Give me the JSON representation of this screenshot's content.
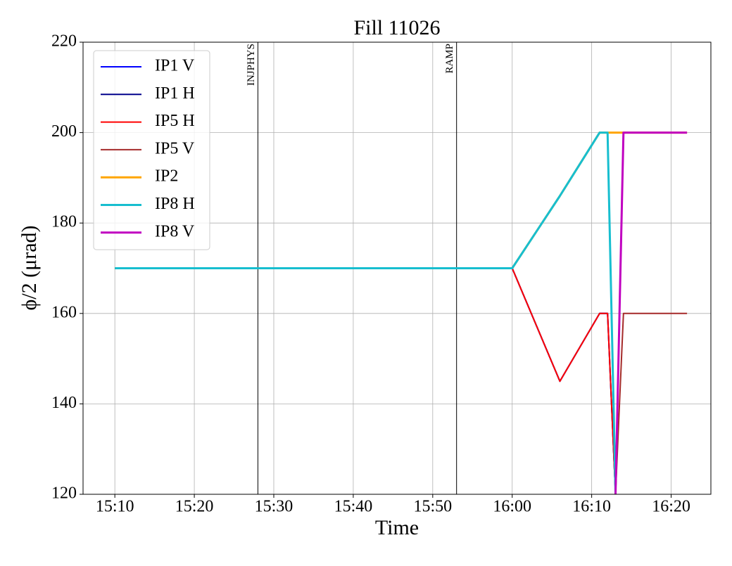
{
  "chart_data": {
    "type": "line",
    "title": "Fill 11026",
    "x_label": "Time",
    "y_label": "ϕ/2 (μrad)",
    "x": [
      "15:10",
      "16:00",
      "16:06",
      "16:11",
      "16:12",
      "16:13",
      "16:14",
      "16:22"
    ],
    "series": [
      {
        "name": "IP1 V",
        "color": "#0000ff",
        "linewidth": 2,
        "values": [
          170,
          170,
          145,
          160,
          160,
          120,
          null,
          null
        ]
      },
      {
        "name": "IP1 H",
        "color": "#00008b",
        "linewidth": 2,
        "values": [
          170,
          170,
          145,
          160,
          160,
          120,
          null,
          null
        ]
      },
      {
        "name": "IP5 H",
        "color": "#ff0000",
        "linewidth": 2,
        "values": [
          170,
          170,
          145,
          160,
          160,
          120,
          null,
          null
        ]
      },
      {
        "name": "IP5 V",
        "color": "#a52a2a",
        "linewidth": 2,
        "values": [
          null,
          null,
          null,
          null,
          null,
          120,
          160,
          160
        ]
      },
      {
        "name": "IP2",
        "color": "#ffa500",
        "linewidth": 3,
        "values": [
          170,
          170,
          186,
          200,
          200,
          200,
          200,
          200
        ]
      },
      {
        "name": "IP8 H",
        "color": "#17becf",
        "linewidth": 3,
        "values": [
          170,
          170,
          186,
          200,
          200,
          120,
          null,
          null
        ]
      },
      {
        "name": "IP8 V",
        "color": "#c000c0",
        "linewidth": 3,
        "values": [
          null,
          null,
          null,
          null,
          null,
          120,
          200,
          200
        ]
      }
    ],
    "xlim": [
      "15:06",
      "16:25"
    ],
    "xticks": [
      "15:10",
      "15:20",
      "15:30",
      "15:40",
      "15:50",
      "16:00",
      "16:10",
      "16:20"
    ],
    "ylim": [
      120,
      220
    ],
    "yticks": [
      120,
      140,
      160,
      180,
      200,
      220
    ],
    "annotations": [
      {
        "label": "INJPHYS",
        "x": "15:28"
      },
      {
        "label": "RAMP",
        "x": "15:53"
      }
    ],
    "grid": true,
    "legend": "upper left"
  }
}
